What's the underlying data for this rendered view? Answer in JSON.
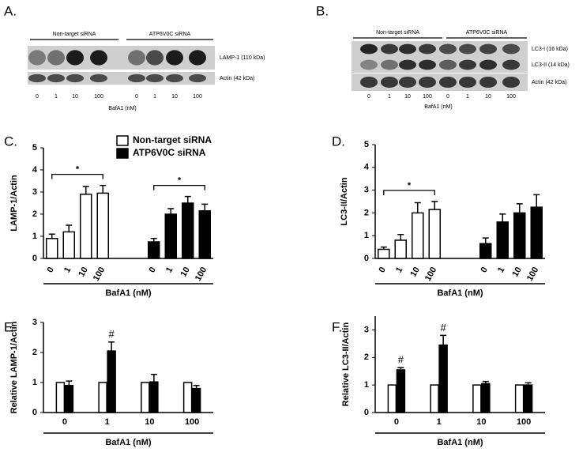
{
  "blots": [
    {
      "panel": "A.",
      "groups": [
        "Non-target siRNA",
        "ATP6V0C siRNA"
      ],
      "bands": [
        "LAMP-1 (110 kDa)",
        "Actin (42 kDa)"
      ],
      "lanes": [
        "0",
        "1",
        "10",
        "100",
        "0",
        "1",
        "10",
        "100"
      ],
      "xlabel": "BafA1 (nM)"
    },
    {
      "panel": "B.",
      "groups": [
        "Non-target siRNA",
        "ATP6V0C siRNA"
      ],
      "bands": [
        "LC3-I (16 kDa)",
        "LC3-II (14 kDa)",
        "Actin (42 kDa)"
      ],
      "lanes": [
        "0",
        "1",
        "10",
        "100",
        "0",
        "1",
        "10",
        "100"
      ],
      "xlabel": "BafA1 (nM)"
    }
  ],
  "chart_data": [
    {
      "type": "bar",
      "panel": "C.",
      "bar_layout": "separate",
      "ylabel": "LAMP-1/Actin",
      "xlabel": "BafA1 (nM)",
      "categories": [
        "0",
        "1",
        "10",
        "100"
      ],
      "series": [
        {
          "name": "Non-target siRNA",
          "color": "#ffffff",
          "values": [
            0.9,
            1.2,
            2.9,
            2.95
          ],
          "errors": [
            0.2,
            0.3,
            0.35,
            0.35
          ]
        },
        {
          "name": "ATP6V0C siRNA",
          "color": "#000000",
          "values": [
            0.75,
            2.0,
            2.5,
            2.15
          ],
          "errors": [
            0.15,
            0.25,
            0.3,
            0.3
          ]
        }
      ],
      "ylim": [
        0,
        5
      ],
      "yticks": [
        0,
        1,
        2,
        3,
        4,
        5
      ],
      "annotations": [
        {
          "text": "*",
          "series": 0,
          "categories": [
            0,
            3
          ]
        },
        {
          "text": "*",
          "series": 1,
          "categories": [
            0,
            3
          ]
        }
      ]
    },
    {
      "type": "bar",
      "panel": "D.",
      "bar_layout": "separate",
      "ylabel": "LC3-II/Actin",
      "xlabel": "BafA1 (nM)",
      "categories": [
        "0",
        "1",
        "10",
        "100"
      ],
      "series": [
        {
          "color": "#ffffff",
          "values": [
            0.4,
            0.8,
            2.0,
            2.15
          ],
          "errors": [
            0.1,
            0.25,
            0.45,
            0.35
          ]
        },
        {
          "color": "#000000",
          "values": [
            0.65,
            1.6,
            2.0,
            2.25
          ],
          "errors": [
            0.25,
            0.35,
            0.4,
            0.55
          ]
        }
      ],
      "ylim": [
        0,
        5
      ],
      "yticks": [
        0,
        1,
        2,
        3,
        4,
        5
      ],
      "annotations": [
        {
          "text": "*",
          "series": 0,
          "categories": [
            0,
            3
          ]
        }
      ]
    },
    {
      "type": "bar",
      "panel": "E.",
      "bar_layout": "grouped",
      "ylabel": "Relative LAMP-1/Actin",
      "xlabel": "BafA1 (nM)",
      "categories": [
        "0",
        "1",
        "10",
        "100"
      ],
      "series": [
        {
          "color": "#ffffff",
          "values": [
            1,
            1,
            1,
            1
          ]
        },
        {
          "color": "#000000",
          "values": [
            0.9,
            2.05,
            1.02,
            0.8
          ],
          "errors": [
            0.15,
            0.3,
            0.25,
            0.1
          ]
        }
      ],
      "ylim": [
        0,
        3
      ],
      "yticks": [
        0,
        1,
        2,
        3
      ],
      "annotations": [
        {
          "text": "#",
          "series": 1,
          "categories": [
            1
          ]
        }
      ]
    },
    {
      "type": "bar",
      "panel": "F.",
      "bar_layout": "grouped",
      "ylabel": "Relative LC3-II/Actin",
      "xlabel": "BafA1 (nM)",
      "categories": [
        "0",
        "1",
        "10",
        "100"
      ],
      "series": [
        {
          "color": "#ffffff",
          "values": [
            1,
            1,
            1,
            1
          ]
        },
        {
          "color": "#000000",
          "values": [
            1.55,
            2.45,
            1.05,
            1.0
          ],
          "errors": [
            0.08,
            0.35,
            0.08,
            0.08
          ]
        }
      ],
      "ylim": [
        0,
        3.5
      ],
      "yticks": [
        0,
        1,
        2,
        3
      ],
      "annotations": [
        {
          "text": "#",
          "series": 1,
          "categories": [
            0
          ]
        },
        {
          "text": "#",
          "series": 1,
          "categories": [
            1
          ]
        }
      ]
    }
  ]
}
